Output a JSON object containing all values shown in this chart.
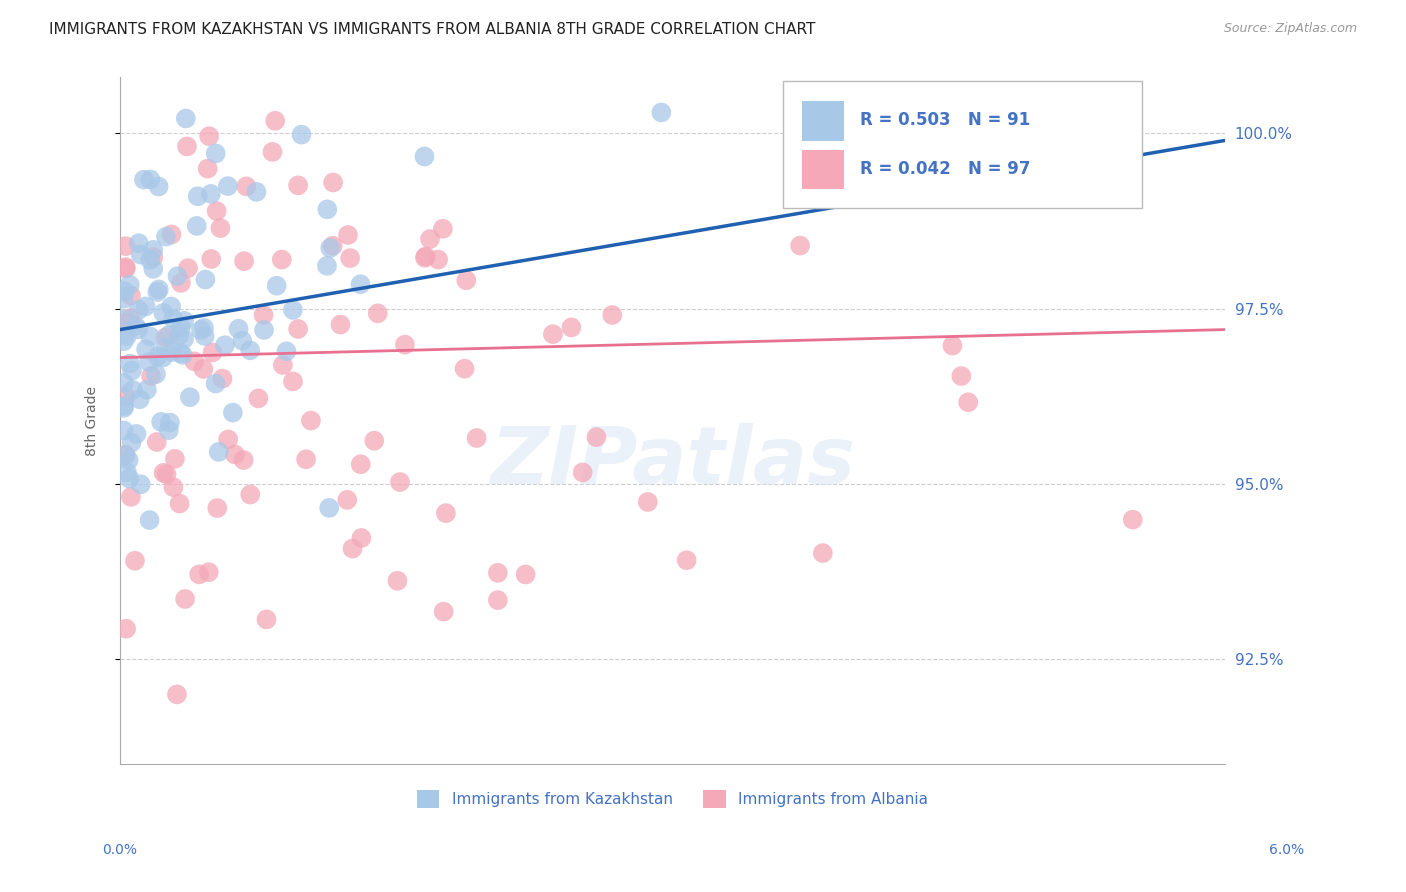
{
  "title": "IMMIGRANTS FROM KAZAKHSTAN VS IMMIGRANTS FROM ALBANIA 8TH GRADE CORRELATION CHART",
  "source": "Source: ZipAtlas.com",
  "ylabel": "8th Grade",
  "xmin": 0.0,
  "xmax": 6.0,
  "ymin": 91.0,
  "ymax": 100.8,
  "yticks": [
    92.5,
    95.0,
    97.5,
    100.0
  ],
  "ytick_labels": [
    "92.5%",
    "95.0%",
    "97.5%",
    "100.0%"
  ],
  "xtick_positions": [
    0.0,
    1.5,
    3.0,
    4.5,
    6.0
  ],
  "legend_r1": "R = 0.503",
  "legend_n1": "N = 91",
  "legend_r2": "R = 0.042",
  "legend_n2": "N = 97",
  "series1_label": "Immigrants from Kazakhstan",
  "series2_label": "Immigrants from Albania",
  "color_blue": "#a8c8e8",
  "color_pink": "#f4a8b8",
  "color_blue_line": "#2060b0",
  "color_pink_line": "#e87090",
  "color_text_blue": "#4472c4",
  "watermark": "ZIPatlas",
  "background_color": "#ffffff",
  "grid_color": "#c8c8c8",
  "title_fontsize": 11,
  "axis_label_color": "#4472c4"
}
